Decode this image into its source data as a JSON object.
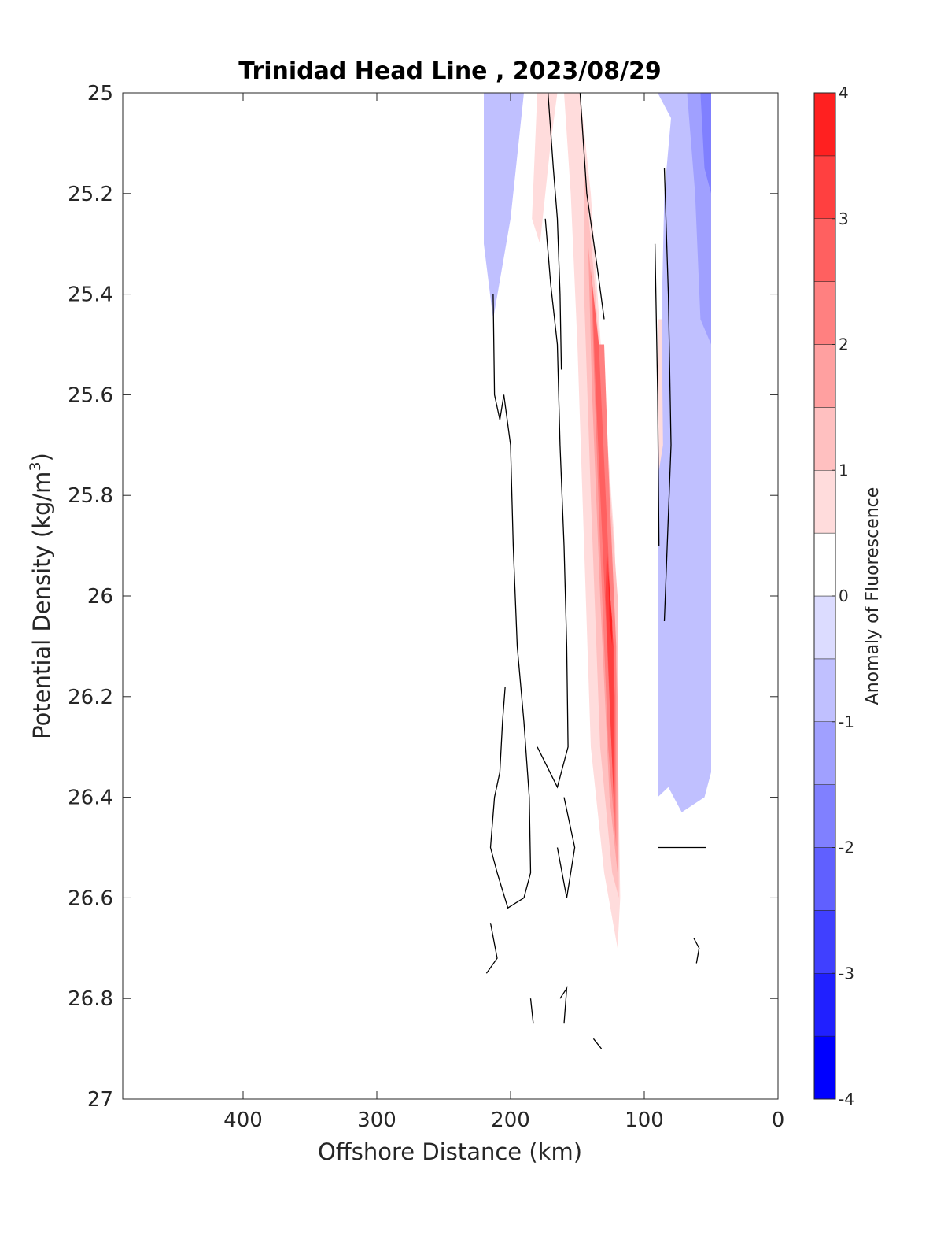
{
  "chart_data": {
    "type": "heatmap",
    "title": "Trinidad Head Line , 2023/08/29",
    "xlabel": "Offshore Distance (km)",
    "ylabel_main": "Potential Density (kg/m",
    "ylabel_sup": "3",
    "ylabel_close": ")",
    "xlim": [
      490,
      0
    ],
    "xticks": [
      "400",
      "300",
      "200",
      "100",
      "0"
    ],
    "ylim": [
      25,
      27
    ],
    "y_reversed": true,
    "yticks": [
      "25",
      "25.2",
      "25.4",
      "25.6",
      "25.8",
      "26",
      "26.2",
      "26.4",
      "26.6",
      "26.8",
      "27"
    ],
    "colorbar": {
      "label": "Anomaly of Fluorescence",
      "range": [
        -4,
        4
      ],
      "step": 0.5,
      "ticks": [
        "4",
        "3",
        "2",
        "1",
        "0",
        "-1",
        "-2",
        "-3",
        "-4"
      ],
      "colors": [
        "#0000ff",
        "#2020ff",
        "#4040ff",
        "#6060ff",
        "#8080ff",
        "#a0a0ff",
        "#c0c0ff",
        "#dcdcff",
        "#ffffff",
        "#ffdcdc",
        "#ffc0c0",
        "#ffa0a0",
        "#ff8080",
        "#ff6060",
        "#ff4040",
        "#ff2020",
        "#ff0000"
      ]
    },
    "anomaly_regions": [
      {
        "level": -0.75,
        "points": [
          [
            220,
            25.0
          ],
          [
            190,
            25.0
          ],
          [
            200,
            25.25
          ],
          [
            213,
            25.45
          ],
          [
            220,
            25.3
          ]
        ]
      },
      {
        "level": -0.75,
        "points": [
          [
            90,
            25.0
          ],
          [
            50,
            25.0
          ],
          [
            50,
            26.35
          ],
          [
            55,
            26.4
          ],
          [
            72,
            26.43
          ],
          [
            82,
            26.38
          ],
          [
            90,
            26.4
          ],
          [
            90,
            25.8
          ],
          [
            85,
            25.2
          ],
          [
            80,
            25.05
          ]
        ]
      },
      {
        "level": -1.25,
        "points": [
          [
            68,
            25.0
          ],
          [
            50,
            25.0
          ],
          [
            50,
            25.5
          ],
          [
            58,
            25.45
          ],
          [
            62,
            25.2
          ]
        ]
      },
      {
        "level": -1.75,
        "points": [
          [
            58,
            25.0
          ],
          [
            50,
            25.0
          ],
          [
            50,
            25.2
          ],
          [
            55,
            25.15
          ]
        ]
      },
      {
        "level": 0.75,
        "points": [
          [
            180,
            25.0
          ],
          [
            165,
            25.0
          ],
          [
            170,
            25.1
          ],
          [
            178,
            25.3
          ],
          [
            184,
            25.25
          ]
        ]
      },
      {
        "level": 0.75,
        "points": [
          [
            160,
            25.0
          ],
          [
            148,
            25.0
          ],
          [
            140,
            25.2
          ],
          [
            130,
            25.6
          ],
          [
            122,
            25.9
          ],
          [
            118,
            26.6
          ],
          [
            120,
            26.7
          ],
          [
            130,
            26.55
          ],
          [
            140,
            26.3
          ],
          [
            145,
            25.9
          ],
          [
            150,
            25.5
          ],
          [
            155,
            25.2
          ]
        ]
      },
      {
        "level": 0.75,
        "points": [
          [
            90,
            25.45
          ],
          [
            87,
            25.45
          ],
          [
            86,
            25.7
          ],
          [
            89,
            25.75
          ]
        ]
      },
      {
        "level": 1.25,
        "points": [
          [
            145,
            25.15
          ],
          [
            138,
            25.35
          ],
          [
            128,
            25.7
          ],
          [
            120,
            26.0
          ],
          [
            119,
            26.6
          ],
          [
            124,
            26.55
          ],
          [
            133,
            26.3
          ],
          [
            140,
            25.8
          ],
          [
            145,
            25.4
          ]
        ]
      },
      {
        "level": 1.75,
        "points": [
          [
            142,
            25.3
          ],
          [
            135,
            25.5
          ],
          [
            125,
            25.85
          ],
          [
            120,
            26.2
          ],
          [
            120,
            26.55
          ],
          [
            126,
            26.4
          ],
          [
            133,
            26.0
          ],
          [
            139,
            25.6
          ]
        ]
      },
      {
        "level": 2.25,
        "points": [
          [
            140,
            25.35
          ],
          [
            134,
            25.5
          ],
          [
            130,
            25.5
          ],
          [
            126,
            25.8
          ],
          [
            121,
            26.1
          ],
          [
            121,
            26.5
          ],
          [
            127,
            26.3
          ],
          [
            133,
            25.9
          ],
          [
            137,
            25.6
          ]
        ]
      },
      {
        "level": 2.75,
        "points": [
          [
            139,
            25.38
          ],
          [
            134,
            25.5
          ],
          [
            128,
            25.85
          ],
          [
            122,
            26.2
          ],
          [
            122,
            26.45
          ],
          [
            127,
            26.15
          ],
          [
            132,
            25.85
          ],
          [
            137,
            25.55
          ]
        ]
      },
      {
        "level": 3.25,
        "points": [
          [
            128,
            25.9
          ],
          [
            123,
            26.1
          ],
          [
            123,
            26.4
          ],
          [
            126,
            26.2
          ],
          [
            129,
            26.0
          ]
        ]
      },
      {
        "level": 3.75,
        "points": [
          [
            127,
            25.95
          ],
          [
            124,
            26.05
          ],
          [
            124,
            26.1
          ],
          [
            126,
            26.05
          ]
        ]
      }
    ],
    "zero_contours": [
      [
        [
          172,
          25.0
        ],
        [
          168,
          25.15
        ],
        [
          165,
          25.25
        ],
        [
          163,
          25.4
        ],
        [
          162,
          25.55
        ]
      ],
      [
        [
          148,
          25.0
        ],
        [
          143,
          25.2
        ],
        [
          135,
          25.35
        ],
        [
          130,
          25.45
        ]
      ],
      [
        [
          85,
          25.15
        ],
        [
          82,
          25.4
        ],
        [
          80,
          25.7
        ],
        [
          85,
          26.05
        ]
      ],
      [
        [
          92,
          25.3
        ],
        [
          90,
          25.6
        ],
        [
          89,
          25.9
        ]
      ],
      [
        [
          213,
          25.4
        ],
        [
          212,
          25.6
        ],
        [
          208,
          25.65
        ],
        [
          205,
          25.6
        ],
        [
          200,
          25.7
        ],
        [
          198,
          25.9
        ],
        [
          195,
          26.1
        ],
        [
          190,
          26.25
        ],
        [
          186,
          26.4
        ],
        [
          185,
          26.55
        ],
        [
          190,
          26.6
        ],
        [
          202,
          26.62
        ],
        [
          210,
          26.55
        ],
        [
          215,
          26.5
        ],
        [
          212,
          26.4
        ],
        [
          208,
          26.35
        ],
        [
          206,
          26.25
        ],
        [
          204,
          26.18
        ]
      ],
      [
        [
          174,
          25.25
        ],
        [
          170,
          25.38
        ],
        [
          165,
          25.5
        ],
        [
          163,
          25.7
        ],
        [
          160,
          25.9
        ],
        [
          158,
          26.1
        ],
        [
          157,
          26.3
        ],
        [
          165,
          26.38
        ],
        [
          180,
          26.3
        ]
      ],
      [
        [
          160,
          26.4
        ],
        [
          152,
          26.5
        ],
        [
          158,
          26.6
        ],
        [
          165,
          26.5
        ]
      ],
      [
        [
          215,
          26.65
        ],
        [
          210,
          26.72
        ],
        [
          218,
          26.75
        ]
      ],
      [
        [
          185,
          26.8
        ],
        [
          183,
          26.85
        ]
      ],
      [
        [
          163,
          26.8
        ],
        [
          158,
          26.78
        ],
        [
          160,
          26.85
        ]
      ],
      [
        [
          138,
          26.88
        ],
        [
          132,
          26.9
        ]
      ],
      [
        [
          90,
          26.5
        ],
        [
          72,
          26.5
        ],
        [
          54,
          26.5
        ]
      ],
      [
        [
          63,
          26.68
        ],
        [
          59,
          26.7
        ],
        [
          61,
          26.73
        ]
      ]
    ]
  }
}
